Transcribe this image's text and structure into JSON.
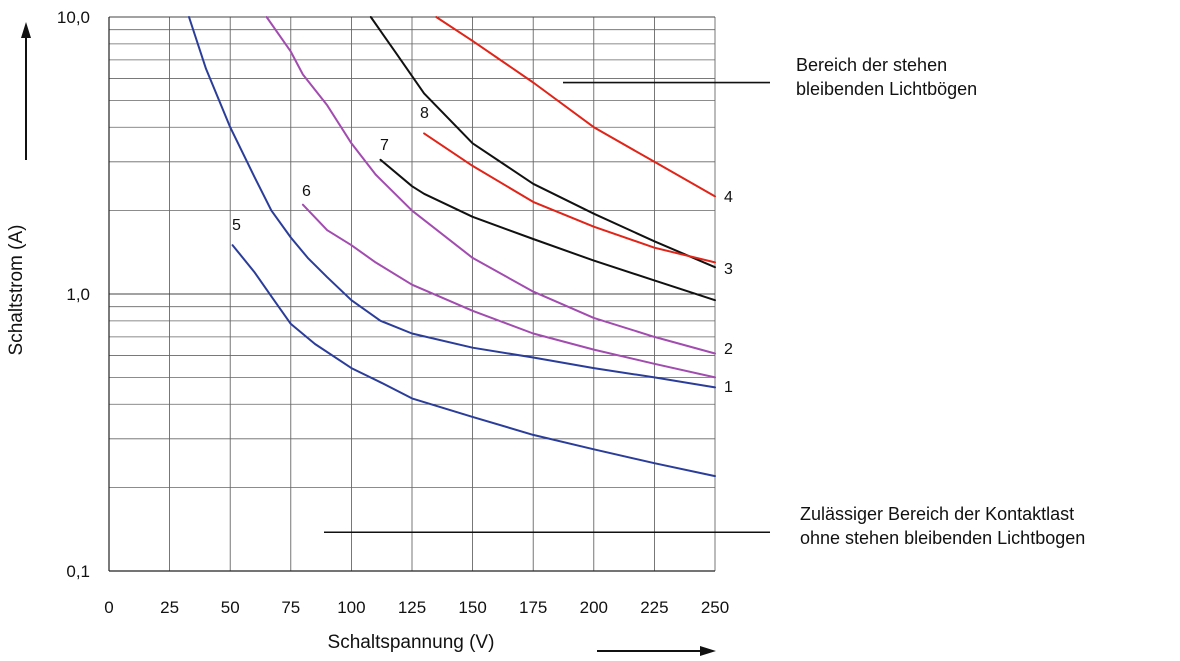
{
  "chart_data": {
    "type": "line",
    "title": "",
    "xlabel": "Schaltspannung (V)",
    "ylabel": "Schaltstrom (A)",
    "xlim": [
      0,
      250
    ],
    "ylim": [
      0.1,
      10.0
    ],
    "y_scale": "log",
    "grid": true,
    "x_ticks": [
      0,
      25,
      50,
      75,
      100,
      125,
      150,
      175,
      200,
      225,
      250
    ],
    "x_tick_labels": [
      "0",
      "25",
      "50",
      "75",
      "100",
      "125",
      "150",
      "175",
      "200",
      "225",
      "250"
    ],
    "y_tick_labels": [
      {
        "value": 0.1,
        "label": "0,1"
      },
      {
        "value": 1.0,
        "label": "1,0"
      },
      {
        "value": 10.0,
        "label": "10,0"
      }
    ],
    "colors": {
      "blue": "#2b3d9a",
      "purple": "#a24cb0",
      "black": "#111111",
      "red": "#e02418"
    },
    "series": [
      {
        "name": "1",
        "color": "#2b3d9a",
        "x": [
          33,
          40,
          50,
          60,
          67,
          75,
          82,
          90,
          100,
          112,
          125,
          150,
          175,
          200,
          225,
          250
        ],
        "y": [
          10.0,
          6.5,
          4.0,
          2.65,
          2.0,
          1.6,
          1.35,
          1.15,
          0.95,
          0.8,
          0.72,
          0.64,
          0.59,
          0.54,
          0.5,
          0.46
        ]
      },
      {
        "name": "2",
        "color": "#a24cb0",
        "x": [
          65,
          75,
          80,
          90,
          100,
          110,
          125,
          150,
          175,
          200,
          225,
          250
        ],
        "y": [
          10.0,
          7.5,
          6.2,
          4.8,
          3.5,
          2.7,
          2.0,
          1.35,
          1.02,
          0.82,
          0.7,
          0.61
        ]
      },
      {
        "name": "3",
        "color": "#111111",
        "x": [
          108,
          118,
          130,
          150,
          175,
          200,
          225,
          250
        ],
        "y": [
          10.0,
          7.5,
          5.3,
          3.5,
          2.5,
          1.95,
          1.55,
          1.25
        ]
      },
      {
        "name": "4",
        "color": "#e02418",
        "x": [
          135,
          150,
          175,
          200,
          225,
          250
        ],
        "y": [
          10.0,
          8.2,
          5.8,
          4.0,
          3.0,
          2.25
        ]
      },
      {
        "name": "5",
        "color": "#2b3d9a",
        "x": [
          51,
          60,
          67,
          75,
          85,
          100,
          112,
          125,
          150,
          175,
          200,
          225,
          250
        ],
        "y": [
          1.5,
          1.2,
          0.98,
          0.78,
          0.66,
          0.54,
          0.48,
          0.42,
          0.36,
          0.31,
          0.275,
          0.245,
          0.22
        ]
      },
      {
        "name": "6",
        "color": "#a24cb0",
        "x": [
          80,
          90,
          100,
          110,
          125,
          150,
          175,
          200,
          225,
          250
        ],
        "y": [
          2.1,
          1.7,
          1.5,
          1.3,
          1.08,
          0.87,
          0.72,
          0.63,
          0.56,
          0.5
        ]
      },
      {
        "name": "7",
        "color": "#111111",
        "x": [
          112,
          125,
          130,
          150,
          175,
          200,
          225,
          250
        ],
        "y": [
          3.05,
          2.45,
          2.3,
          1.9,
          1.58,
          1.32,
          1.12,
          0.95
        ]
      },
      {
        "name": "8",
        "color": "#e02418",
        "x": [
          130,
          150,
          175,
          200,
          225,
          250
        ],
        "y": [
          3.8,
          2.9,
          2.15,
          1.75,
          1.47,
          1.3
        ]
      }
    ],
    "annotations": [
      {
        "lines": [
          "Bereich der stehen",
          "bleibenden Lichtbögen"
        ],
        "pointer_y": 5.8
      },
      {
        "lines": [
          "Zulässiger Bereich der Kontaktlast",
          "ohne stehen bleibenden Lichtbogen"
        ],
        "pointer_y": 0.138
      }
    ]
  }
}
